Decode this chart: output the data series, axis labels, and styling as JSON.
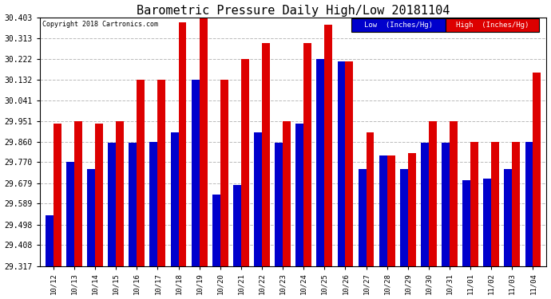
{
  "title": "Barometric Pressure Daily High/Low 20181104",
  "copyright": "Copyright 2018 Cartronics.com",
  "legend_low": "Low  (Inches/Hg)",
  "legend_high": "High  (Inches/Hg)",
  "dates": [
    "10/12",
    "10/13",
    "10/14",
    "10/15",
    "10/16",
    "10/17",
    "10/18",
    "10/19",
    "10/20",
    "10/21",
    "10/22",
    "10/23",
    "10/24",
    "10/25",
    "10/26",
    "10/27",
    "10/28",
    "10/29",
    "10/30",
    "10/31",
    "11/01",
    "11/02",
    "11/03",
    "11/04"
  ],
  "low": [
    29.54,
    29.77,
    29.74,
    29.855,
    29.855,
    29.86,
    29.9,
    30.13,
    29.63,
    29.67,
    29.9,
    29.855,
    29.94,
    30.22,
    30.21,
    29.74,
    29.8,
    29.74,
    29.855,
    29.855,
    29.69,
    29.7,
    29.74,
    29.86
  ],
  "high": [
    29.94,
    29.95,
    29.94,
    29.95,
    30.13,
    30.13,
    30.38,
    30.403,
    30.13,
    30.222,
    30.29,
    29.95,
    30.29,
    30.37,
    30.21,
    29.9,
    29.8,
    29.81,
    29.95,
    29.95,
    29.86,
    29.86,
    29.86,
    30.16
  ],
  "ylim_min": 29.317,
  "ylim_max": 30.403,
  "yticks": [
    29.317,
    29.408,
    29.498,
    29.589,
    29.679,
    29.77,
    29.86,
    29.951,
    30.041,
    30.132,
    30.222,
    30.313,
    30.403
  ],
  "low_color": "#0000cc",
  "high_color": "#dd0000",
  "background_color": "#ffffff",
  "grid_color": "#bbbbbb"
}
